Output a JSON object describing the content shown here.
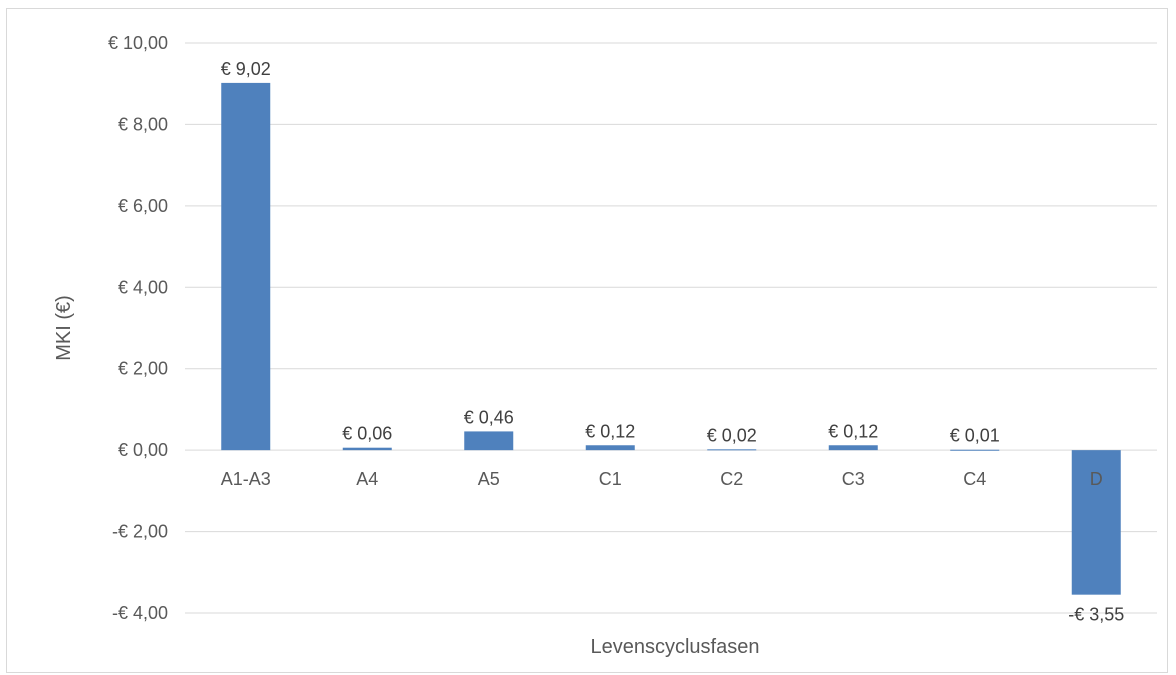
{
  "chart_data": {
    "type": "bar",
    "title": "",
    "xlabel": "Levenscyclusfasen",
    "ylabel": "MKI (€)",
    "ylim": [
      -4,
      10
    ],
    "yticks": [
      10,
      8,
      6,
      4,
      2,
      0,
      -2,
      -4
    ],
    "ytick_labels": [
      "€ 10,00",
      "€ 8,00",
      "€ 6,00",
      "€ 4,00",
      "€ 2,00",
      "€ 0,00",
      "-€ 2,00",
      "-€ 4,00"
    ],
    "categories": [
      "A1-A3",
      "A4",
      "A5",
      "C1",
      "C2",
      "C3",
      "C4",
      "D"
    ],
    "values": [
      9.02,
      0.06,
      0.46,
      0.12,
      0.02,
      0.12,
      0.01,
      -3.55
    ],
    "data_labels": [
      "€ 9,02",
      "€ 0,06",
      "€ 0,46",
      "€ 0,12",
      "€ 0,02",
      "€ 0,12",
      "€ 0,01",
      "-€ 3,55"
    ],
    "bar_color": "#4f81bd",
    "grid": true,
    "legend": "none"
  }
}
